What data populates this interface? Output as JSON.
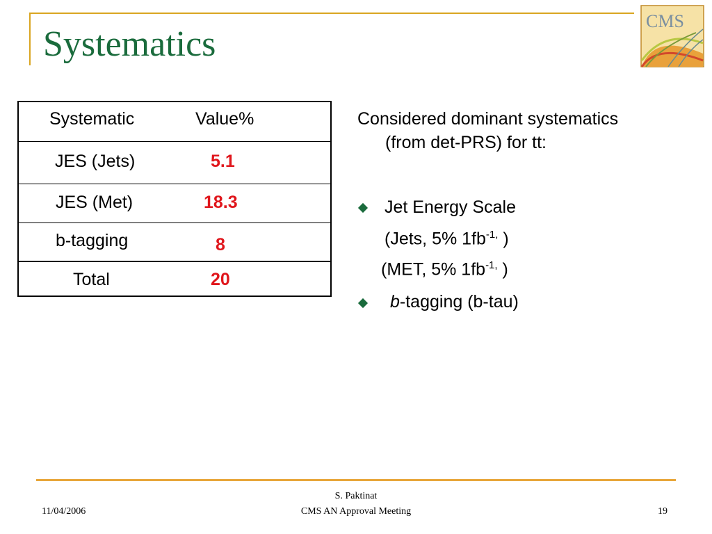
{
  "slide": {
    "title": "Systematics"
  },
  "table": {
    "headers": [
      "Systematic",
      "Value%"
    ],
    "rows": [
      {
        "label": "JES (Jets)",
        "value": "5.1"
      },
      {
        "label": "JES (Met)",
        "value": "18.3"
      },
      {
        "label": "b-tagging",
        "value": "8"
      }
    ],
    "total": {
      "label": "Total",
      "value": "20"
    }
  },
  "notes": {
    "intro_line1": "Considered dominant systematics",
    "intro_line2": "(from det-PRS) for tt:",
    "bullet1": "Jet Energy Scale",
    "jets_pre": "(Jets, 5% 1fb",
    "jets_sup": "-1,",
    "jets_post": " )",
    "met_pre": "(MET, 5% 1fb",
    "met_sup": "-1,",
    "met_post": " )",
    "bullet2_italic": "b",
    "bullet2_rest": "-tagging (b-tau)"
  },
  "footer": {
    "date": "11/04/2006",
    "author": "S. Paktinat",
    "meeting": "CMS AN Approval Meeting",
    "page": "19"
  },
  "logo": {
    "text": "CMS",
    "icon": "cms-logo-icon"
  },
  "colors": {
    "title": "#1a6b3c",
    "accent_gold": "#d9a521",
    "value_red": "#e0161c",
    "bullet_green": "#1a6b3c"
  }
}
